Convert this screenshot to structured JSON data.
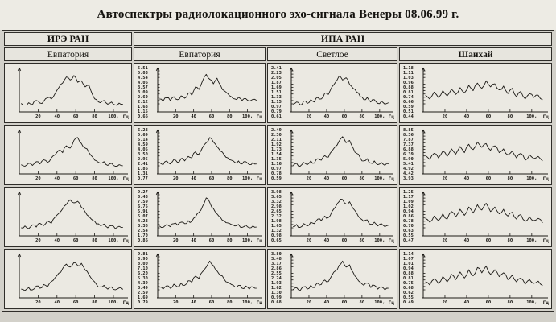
{
  "title": "Автоспектры радиолокационного эхо-сигнала Венеры 08.06.99 г.",
  "header": {
    "org1": "ИРЭ РАН",
    "org2": "ИПА РАН",
    "sites": [
      "Евпатория",
      "Евпатория",
      "Светлое",
      "Шанхай"
    ]
  },
  "axis": {
    "x_ticks": [
      20,
      40,
      60,
      80,
      100
    ],
    "x_tick_labels": [
      "20",
      "40",
      "60",
      "80",
      "100,"
    ],
    "x_unit": "Гц",
    "x_max": 112,
    "x_start": 2,
    "x_step": 4
  },
  "chart_data": {
    "type": "line",
    "title": "Автоспектры радиолокационного эхо-сигнала Венеры 08.06.99 г.",
    "x_unit": "Гц",
    "x_ticks": [
      20,
      40,
      60,
      80,
      100
    ],
    "plots": [
      {
        "row": 1,
        "col": 1,
        "org": "ИРЭ РАН",
        "site": "Евпатория",
        "y_ticks": [],
        "values": [
          0.18,
          0.14,
          0.2,
          0.15,
          0.26,
          0.19,
          0.24,
          0.33,
          0.3,
          0.44,
          0.6,
          0.72,
          0.88,
          0.8,
          0.92,
          0.74,
          0.78,
          0.62,
          0.66,
          0.4,
          0.28,
          0.2,
          0.26,
          0.16,
          0.22,
          0.14,
          0.19,
          0.16
        ]
      },
      {
        "row": 1,
        "col": 2,
        "org": "ИПА РАН",
        "site": "Евпатория",
        "y_ticks": [
          "5.51",
          "5.03",
          "4.54",
          "4.06",
          "3.57",
          "3.09",
          "2.60",
          "2.12",
          "1.63",
          "1.15",
          "0.66"
        ],
        "values": [
          0.3,
          0.24,
          0.33,
          0.26,
          0.36,
          0.28,
          0.38,
          0.32,
          0.45,
          0.4,
          0.62,
          0.55,
          0.78,
          0.95,
          0.82,
          0.7,
          0.85,
          0.66,
          0.52,
          0.44,
          0.36,
          0.3,
          0.34,
          0.26,
          0.31,
          0.24,
          0.29,
          0.26
        ]
      },
      {
        "row": 1,
        "col": 3,
        "org": "ИПА РАН",
        "site": "Светлое",
        "y_ticks": [
          "2.41",
          "2.23",
          "2.05",
          "1.87",
          "1.69",
          "1.51",
          "1.33",
          "1.15",
          "0.97",
          "0.79",
          "0.61"
        ],
        "values": [
          0.16,
          0.22,
          0.14,
          0.24,
          0.18,
          0.28,
          0.22,
          0.34,
          0.3,
          0.46,
          0.42,
          0.62,
          0.74,
          0.9,
          0.8,
          0.86,
          0.68,
          0.58,
          0.48,
          0.36,
          0.28,
          0.34,
          0.22,
          0.28,
          0.18,
          0.24,
          0.16,
          0.2
        ]
      },
      {
        "row": 1,
        "col": 4,
        "org": "ИПА РАН",
        "site": "Шанхай",
        "y_ticks": [
          "1.18",
          "1.11",
          "1.03",
          "0.96",
          "0.88",
          "0.81",
          "0.74",
          "0.66",
          "0.59",
          "0.51",
          "0.44"
        ],
        "values": [
          0.4,
          0.3,
          0.48,
          0.34,
          0.52,
          0.38,
          0.56,
          0.42,
          0.6,
          0.46,
          0.66,
          0.52,
          0.72,
          0.58,
          0.78,
          0.62,
          0.7,
          0.54,
          0.64,
          0.44,
          0.58,
          0.36,
          0.5,
          0.3,
          0.44,
          0.34,
          0.4,
          0.28
        ]
      },
      {
        "row": 2,
        "col": 1,
        "org": "ИРЭ РАН",
        "site": "Евпатория",
        "y_ticks": [],
        "values": [
          0.2,
          0.16,
          0.24,
          0.18,
          0.28,
          0.22,
          0.33,
          0.26,
          0.38,
          0.46,
          0.58,
          0.52,
          0.7,
          0.64,
          0.84,
          0.92,
          0.76,
          0.64,
          0.52,
          0.4,
          0.3,
          0.24,
          0.28,
          0.18,
          0.24,
          0.16,
          0.2,
          0.17
        ]
      },
      {
        "row": 2,
        "col": 2,
        "org": "ИПА РАН",
        "site": "Евпатория",
        "y_ticks": [
          "6.23",
          "5.69",
          "5.14",
          "4.59",
          "4.05",
          "3.50",
          "2.95",
          "2.41",
          "1.86",
          "1.31",
          "0.77"
        ],
        "values": [
          0.26,
          0.2,
          0.3,
          0.22,
          0.34,
          0.26,
          0.36,
          0.3,
          0.42,
          0.38,
          0.54,
          0.48,
          0.66,
          0.78,
          0.92,
          0.8,
          0.68,
          0.56,
          0.46,
          0.38,
          0.32,
          0.26,
          0.3,
          0.22,
          0.28,
          0.2,
          0.26,
          0.22
        ]
      },
      {
        "row": 2,
        "col": 3,
        "org": "ИПА РАН",
        "site": "Светлое",
        "y_ticks": [
          "2.49",
          "2.30",
          "2.11",
          "1.92",
          "1.73",
          "1.54",
          "1.35",
          "1.16",
          "0.97",
          "0.78",
          "0.59"
        ],
        "values": [
          0.18,
          0.24,
          0.16,
          0.26,
          0.2,
          0.3,
          0.24,
          0.36,
          0.32,
          0.44,
          0.4,
          0.56,
          0.68,
          0.82,
          0.94,
          0.78,
          0.84,
          0.64,
          0.5,
          0.38,
          0.3,
          0.36,
          0.24,
          0.3,
          0.2,
          0.26,
          0.18,
          0.22
        ]
      },
      {
        "row": 2,
        "col": 4,
        "org": "ИПА РАН",
        "site": "Шанхай",
        "y_ticks": [
          "8.85",
          "8.36",
          "7.87",
          "7.37",
          "6.88",
          "6.39",
          "5.90",
          "5.41",
          "4.92",
          "4.42",
          "3.93"
        ],
        "values": [
          0.44,
          0.34,
          0.5,
          0.38,
          0.56,
          0.42,
          0.62,
          0.48,
          0.68,
          0.52,
          0.74,
          0.6,
          0.8,
          0.66,
          0.76,
          0.58,
          0.7,
          0.52,
          0.62,
          0.46,
          0.56,
          0.38,
          0.5,
          0.32,
          0.46,
          0.36,
          0.42,
          0.3
        ]
      },
      {
        "row": 3,
        "col": 1,
        "org": "ИРЭ РАН",
        "site": "Евпатория",
        "y_ticks": [],
        "values": [
          0.17,
          0.22,
          0.15,
          0.25,
          0.19,
          0.29,
          0.23,
          0.35,
          0.29,
          0.45,
          0.55,
          0.67,
          0.79,
          0.91,
          0.83,
          0.87,
          0.71,
          0.59,
          0.47,
          0.37,
          0.27,
          0.23,
          0.27,
          0.17,
          0.23,
          0.15,
          0.21,
          0.18
        ]
      },
      {
        "row": 3,
        "col": 2,
        "org": "ИПА РАН",
        "site": "Евпатория",
        "y_ticks": [
          "9.27",
          "8.43",
          "7.59",
          "6.75",
          "5.91",
          "5.07",
          "4.23",
          "3.38",
          "2.54",
          "1.70",
          "0.86"
        ],
        "values": [
          0.22,
          0.18,
          0.26,
          0.2,
          0.28,
          0.24,
          0.32,
          0.28,
          0.36,
          0.34,
          0.46,
          0.58,
          0.74,
          0.96,
          0.84,
          0.68,
          0.54,
          0.44,
          0.36,
          0.3,
          0.26,
          0.22,
          0.26,
          0.18,
          0.24,
          0.17,
          0.22,
          0.19
        ]
      },
      {
        "row": 3,
        "col": 3,
        "org": "ИПА РАН",
        "site": "Светлое",
        "y_ticks": [
          "3.98",
          "3.65",
          "3.32",
          "2.98",
          "2.65",
          "2.32",
          "1.98",
          "1.65",
          "1.32",
          "0.98",
          "0.65"
        ],
        "values": [
          0.2,
          0.26,
          0.18,
          0.28,
          0.22,
          0.32,
          0.28,
          0.4,
          0.36,
          0.48,
          0.44,
          0.6,
          0.72,
          0.86,
          0.92,
          0.8,
          0.86,
          0.68,
          0.56,
          0.42,
          0.34,
          0.38,
          0.26,
          0.32,
          0.22,
          0.28,
          0.2,
          0.24
        ]
      },
      {
        "row": 3,
        "col": 4,
        "org": "ИПА РАН",
        "site": "Шанхай",
        "y_ticks": [
          "1.25",
          "1.17",
          "1.09",
          "1.02",
          "0.94",
          "0.86",
          "0.78",
          "0.70",
          "0.63",
          "0.55",
          "0.47"
        ],
        "values": [
          0.42,
          0.32,
          0.48,
          0.36,
          0.54,
          0.4,
          0.6,
          0.46,
          0.66,
          0.5,
          0.72,
          0.56,
          0.78,
          0.64,
          0.82,
          0.6,
          0.72,
          0.54,
          0.66,
          0.48,
          0.58,
          0.4,
          0.52,
          0.34,
          0.46,
          0.36,
          0.42,
          0.3
        ]
      },
      {
        "row": 4,
        "col": 1,
        "org": "ИРЭ РАН",
        "site": "Евпатория",
        "y_ticks": [],
        "values": [
          0.19,
          0.15,
          0.23,
          0.17,
          0.27,
          0.21,
          0.31,
          0.25,
          0.39,
          0.49,
          0.61,
          0.73,
          0.85,
          0.77,
          0.89,
          0.81,
          0.87,
          0.69,
          0.57,
          0.43,
          0.31,
          0.25,
          0.29,
          0.19,
          0.25,
          0.17,
          0.22,
          0.18
        ]
      },
      {
        "row": 4,
        "col": 2,
        "org": "ИПА РАН",
        "site": "Евпатория",
        "y_ticks": [
          "9.81",
          "8.90",
          "8.00",
          "7.10",
          "6.20",
          "5.30",
          "4.39",
          "3.49",
          "2.59",
          "1.69",
          "0.79"
        ],
        "values": [
          0.24,
          0.19,
          0.28,
          0.21,
          0.32,
          0.25,
          0.35,
          0.29,
          0.41,
          0.37,
          0.53,
          0.47,
          0.65,
          0.77,
          0.93,
          0.81,
          0.67,
          0.55,
          0.45,
          0.37,
          0.31,
          0.25,
          0.29,
          0.21,
          0.27,
          0.19,
          0.25,
          0.21
        ]
      },
      {
        "row": 4,
        "col": 3,
        "org": "ИПА РАН",
        "site": "Светлое",
        "y_ticks": [
          "3.80",
          "3.48",
          "3.17",
          "2.86",
          "2.55",
          "2.24",
          "1.93",
          "1.62",
          "1.30",
          "0.99",
          "0.68"
        ],
        "values": [
          0.17,
          0.23,
          0.15,
          0.25,
          0.19,
          0.29,
          0.23,
          0.35,
          0.31,
          0.43,
          0.39,
          0.55,
          0.67,
          0.81,
          0.93,
          0.77,
          0.83,
          0.63,
          0.49,
          0.37,
          0.29,
          0.35,
          0.23,
          0.29,
          0.19,
          0.25,
          0.17,
          0.21
        ]
      },
      {
        "row": 4,
        "col": 4,
        "org": "ИПА РАН",
        "site": "Шанхай",
        "y_ticks": [
          "1.14",
          "1.07",
          "1.01",
          "0.94",
          "0.88",
          "0.81",
          "0.75",
          "0.68",
          "0.62",
          "0.55",
          "0.49"
        ],
        "values": [
          0.38,
          0.3,
          0.46,
          0.34,
          0.52,
          0.38,
          0.58,
          0.44,
          0.64,
          0.48,
          0.7,
          0.54,
          0.76,
          0.62,
          0.8,
          0.58,
          0.7,
          0.52,
          0.62,
          0.44,
          0.56,
          0.38,
          0.48,
          0.32,
          0.44,
          0.34,
          0.4,
          0.28
        ]
      }
    ]
  }
}
